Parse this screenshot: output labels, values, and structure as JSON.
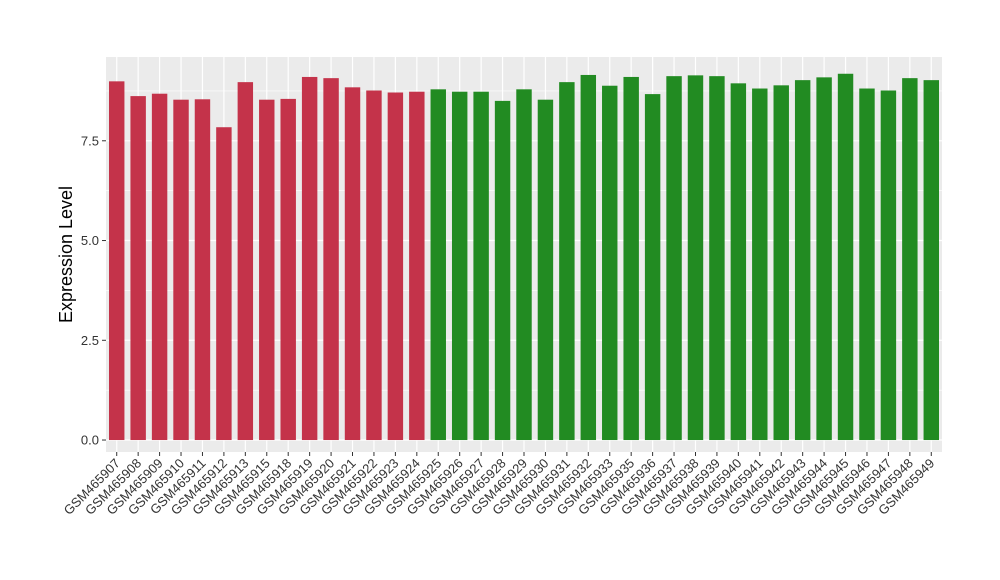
{
  "chart_data": {
    "type": "bar",
    "title": "",
    "xlabel": "",
    "ylabel": "Expression Level",
    "ylim": [
      -0.3,
      9.6
    ],
    "yticks": [
      0.0,
      2.5,
      5.0,
      7.5
    ],
    "ytick_labels": [
      "0.0",
      "2.5",
      "5.0",
      "7.5"
    ],
    "grid": true,
    "panel_background": "#ebebeb",
    "grid_color": "#ffffff",
    "categories": [
      "GSM465907",
      "GSM465908",
      "GSM465909",
      "GSM465910",
      "GSM465911",
      "GSM465912",
      "GSM465913",
      "GSM465915",
      "GSM465918",
      "GSM465919",
      "GSM465920",
      "GSM465921",
      "GSM465922",
      "GSM465923",
      "GSM465924",
      "GSM465925",
      "GSM465926",
      "GSM465927",
      "GSM465928",
      "GSM465929",
      "GSM465930",
      "GSM465931",
      "GSM465932",
      "GSM465933",
      "GSM465935",
      "GSM465936",
      "GSM465937",
      "GSM465938",
      "GSM465939",
      "GSM465940",
      "GSM465941",
      "GSM465942",
      "GSM465943",
      "GSM465944",
      "GSM465945",
      "GSM465946",
      "GSM465947",
      "GSM465948",
      "GSM465949"
    ],
    "values": [
      8.99,
      8.62,
      8.68,
      8.53,
      8.54,
      7.84,
      8.97,
      8.53,
      8.55,
      9.1,
      9.07,
      8.84,
      8.76,
      8.71,
      8.73,
      8.79,
      8.73,
      8.73,
      8.5,
      8.79,
      8.53,
      8.97,
      9.15,
      8.88,
      9.1,
      8.67,
      9.12,
      9.14,
      9.12,
      8.94,
      8.81,
      8.89,
      9.02,
      9.09,
      9.18,
      8.81,
      8.76,
      9.07,
      9.02
    ],
    "group_colors": [
      "#c4334a",
      "#c4334a",
      "#c4334a",
      "#c4334a",
      "#c4334a",
      "#c4334a",
      "#c4334a",
      "#c4334a",
      "#c4334a",
      "#c4334a",
      "#c4334a",
      "#c4334a",
      "#c4334a",
      "#c4334a",
      "#c4334a",
      "#228b22",
      "#228b22",
      "#228b22",
      "#228b22",
      "#228b22",
      "#228b22",
      "#228b22",
      "#228b22",
      "#228b22",
      "#228b22",
      "#228b22",
      "#228b22",
      "#228b22",
      "#228b22",
      "#228b22",
      "#228b22",
      "#228b22",
      "#228b22",
      "#228b22",
      "#228b22",
      "#228b22",
      "#228b22",
      "#228b22",
      "#228b22"
    ]
  }
}
